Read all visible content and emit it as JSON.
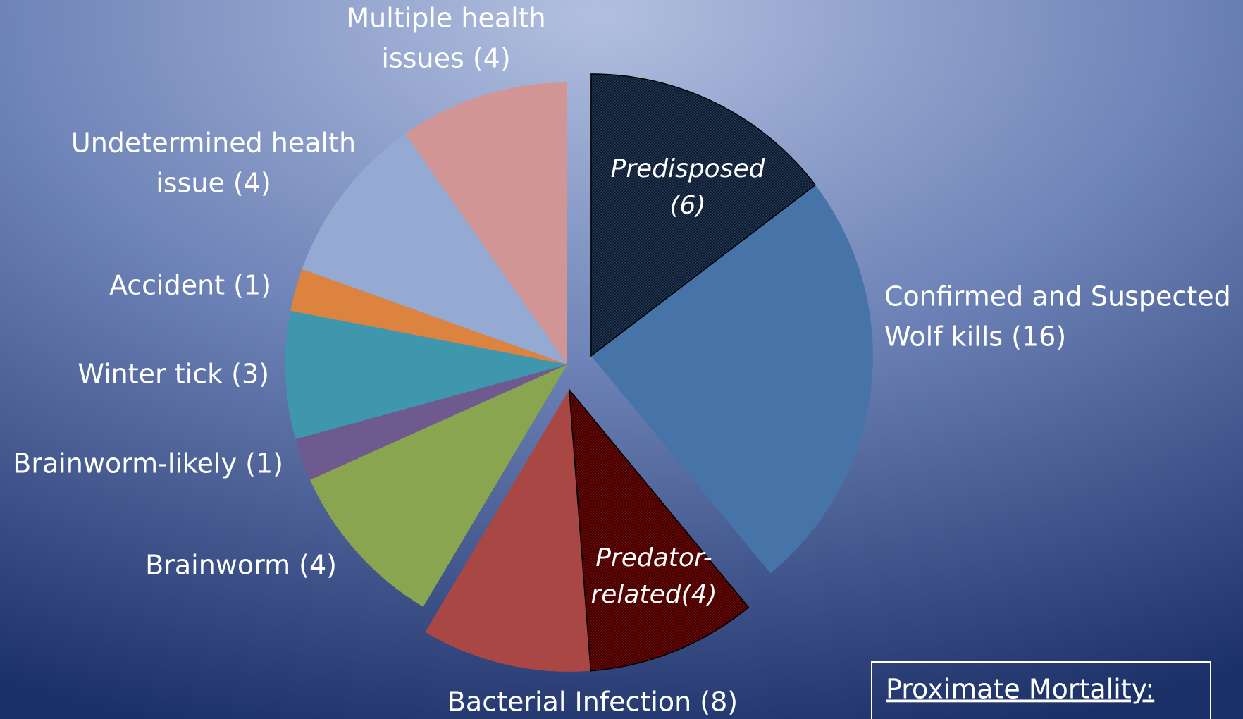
{
  "chart_data": {
    "type": "pie",
    "slices": [
      {
        "label": [
          "Confirmed and Suspected",
          "Wolf kills (16)"
        ],
        "value": 16,
        "color": "#4674a8",
        "explode": true,
        "part": {
          "label": [
            "Predisposed",
            "(6)"
          ],
          "value": 6,
          "color": "#1e3450"
        }
      },
      {
        "label": [
          "Bacterial Infection (8)"
        ],
        "value": 8,
        "color": "#a84744",
        "explode": true,
        "part": {
          "label": [
            "Predator-",
            "related(4)"
          ],
          "value": 4,
          "color": "#6a0808"
        }
      },
      {
        "label": [
          "Brainworm (4)"
        ],
        "value": 4,
        "color": "#89a54f"
      },
      {
        "label": [
          "Brainworm-likely (1)"
        ],
        "value": 1,
        "color": "#6f5a90"
      },
      {
        "label": [
          "Winter tick (3)"
        ],
        "value": 3,
        "color": "#3f97ae"
      },
      {
        "label": [
          "Accident (1)"
        ],
        "value": 1,
        "color": "#dc843f"
      },
      {
        "label": [
          "Undetermined health",
          "issue (4)"
        ],
        "value": 4,
        "color": "#95aad2"
      },
      {
        "label": [
          "Multiple health",
          "issues (4)"
        ],
        "value": 4,
        "color": "#d29595"
      }
    ],
    "annotation": "Proximate Mortality:"
  }
}
